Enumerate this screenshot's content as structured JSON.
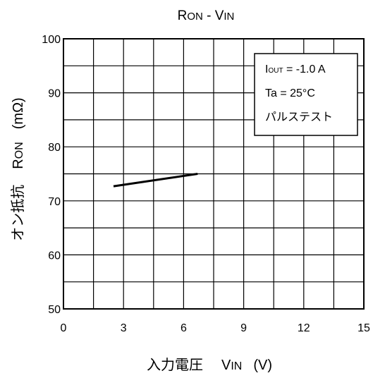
{
  "chart_data": {
    "type": "line",
    "title": {
      "main": "R",
      "sub": "ON",
      "rest": " - V",
      "sub2": "IN"
    },
    "xlabel": {
      "text": "入力電圧",
      "var": "V",
      "sub": "IN",
      "unit": "(V)"
    },
    "ylabel": {
      "text": "オン抵抗",
      "var": "R",
      "sub": "ON",
      "unit": "(mΩ)"
    },
    "xlim": [
      0,
      15
    ],
    "ylim": [
      50,
      100
    ],
    "x_ticks": [
      0,
      3,
      6,
      9,
      12,
      15
    ],
    "y_ticks": [
      50,
      60,
      70,
      80,
      90,
      100
    ],
    "grid": true,
    "x_minor_step": 1.5,
    "y_minor_step": 5,
    "series": [
      {
        "x": [
          2.5,
          6.7
        ],
        "y": [
          72.7,
          75.0
        ]
      }
    ],
    "annotation": {
      "line1": {
        "var": "I",
        "sub": "OUT",
        "rest": " = -1.0 A"
      },
      "line2": "Ta = 25°C",
      "line3": "パルステスト"
    }
  }
}
